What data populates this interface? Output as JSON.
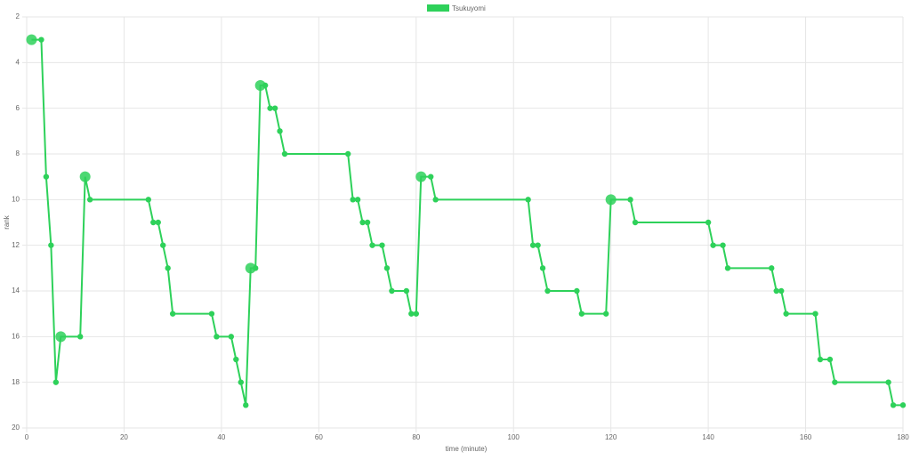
{
  "chart_data": {
    "type": "line",
    "x_label": "time (minute)",
    "y_label": "rank",
    "x": [
      1,
      3,
      4,
      5,
      6,
      7,
      11,
      12,
      13,
      25,
      26,
      27,
      28,
      29,
      30,
      38,
      39,
      42,
      43,
      44,
      45,
      46,
      47,
      48,
      49,
      50,
      51,
      52,
      53,
      66,
      67,
      68,
      69,
      70,
      71,
      73,
      74,
      75,
      78,
      79,
      80,
      81,
      83,
      84,
      103,
      104,
      105,
      106,
      107,
      113,
      114,
      119,
      120,
      124,
      125,
      140,
      141,
      143,
      144,
      153,
      154,
      155,
      156,
      162,
      163,
      165,
      166,
      177,
      178,
      180
    ],
    "series": [
      {
        "name": "Tsukuyomi",
        "color": "#2ed15a",
        "values": [
          3,
          3,
          9,
          12,
          18,
          16,
          16,
          9,
          10,
          10,
          11,
          11,
          12,
          13,
          15,
          15,
          16,
          16,
          17,
          18,
          19,
          13,
          13,
          5,
          5,
          6,
          6,
          7,
          8,
          8,
          10,
          10,
          11,
          11,
          12,
          12,
          13,
          14,
          14,
          15,
          15,
          9,
          9,
          10,
          10,
          12,
          12,
          13,
          14,
          14,
          15,
          15,
          10,
          10,
          11,
          11,
          12,
          12,
          13,
          13,
          14,
          14,
          15,
          15,
          17,
          17,
          18,
          18,
          19,
          19
        ]
      }
    ],
    "xlim": [
      0,
      180
    ],
    "xticks": [
      0,
      20,
      40,
      60,
      80,
      100,
      120,
      140,
      160,
      180
    ],
    "ylim": [
      2,
      20
    ],
    "yticks": [
      2,
      4,
      6,
      8,
      10,
      12,
      14,
      16,
      18,
      20
    ],
    "y_reverse": true,
    "grid": true,
    "legend": "top"
  }
}
